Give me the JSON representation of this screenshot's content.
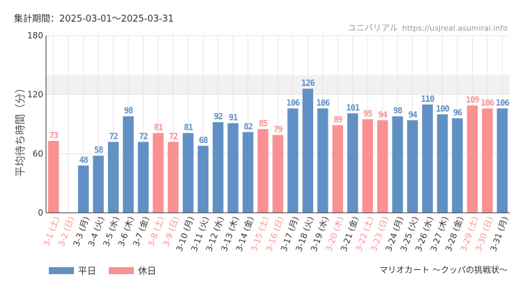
{
  "header": {
    "period_label": "集計期間：2025-03-01～2025-03-31",
    "site_name": "ユニバリアル",
    "site_url": "https://usjreal.asumirai.info"
  },
  "footer": {
    "attraction": "マリオカート ～クッパの挑戦状～"
  },
  "colors": {
    "weekday": "#6190c4",
    "holiday": "#fb9092",
    "band": "#f1f1f1",
    "axis": "#333333",
    "grid": "#e6e6e6"
  },
  "chart_data": {
    "type": "bar",
    "ylabel": "平均待ち時間（分）",
    "ylim": [
      0,
      180
    ],
    "yticks": [
      0,
      60,
      120,
      180
    ],
    "highlight_band": [
      120,
      140
    ],
    "categories": [
      "3-1 (土)",
      "3-2 (日)",
      "3-3 (月)",
      "3-4 (火)",
      "3-5 (水)",
      "3-6 (木)",
      "3-7 (金)",
      "3-8 (土)",
      "3-9 (日)",
      "3-10 (月)",
      "3-11 (火)",
      "3-12 (水)",
      "3-13 (木)",
      "3-14 (金)",
      "3-15 (土)",
      "3-16 (日)",
      "3-17 (月)",
      "3-18 (火)",
      "3-19 (水)",
      "3-20 (木)",
      "3-21 (金)",
      "3-22 (土)",
      "3-23 (日)",
      "3-24 (月)",
      "3-25 (火)",
      "3-26 (水)",
      "3-27 (木)",
      "3-28 (金)",
      "3-29 (土)",
      "3-30 (日)",
      "3-31 (月)"
    ],
    "values": [
      73,
      null,
      48,
      58,
      72,
      98,
      72,
      81,
      72,
      81,
      68,
      92,
      91,
      82,
      85,
      79,
      106,
      126,
      106,
      89,
      101,
      95,
      94,
      98,
      94,
      110,
      100,
      96,
      109,
      106,
      106
    ],
    "day_type": [
      "休日",
      "休日",
      "平日",
      "平日",
      "平日",
      "平日",
      "平日",
      "休日",
      "休日",
      "平日",
      "平日",
      "平日",
      "平日",
      "平日",
      "休日",
      "休日",
      "平日",
      "平日",
      "平日",
      "休日",
      "平日",
      "休日",
      "休日",
      "平日",
      "平日",
      "平日",
      "平日",
      "平日",
      "休日",
      "休日",
      "平日"
    ],
    "legend": [
      {
        "name": "平日",
        "color": "#6190c4"
      },
      {
        "name": "休日",
        "color": "#fb9092"
      }
    ]
  }
}
